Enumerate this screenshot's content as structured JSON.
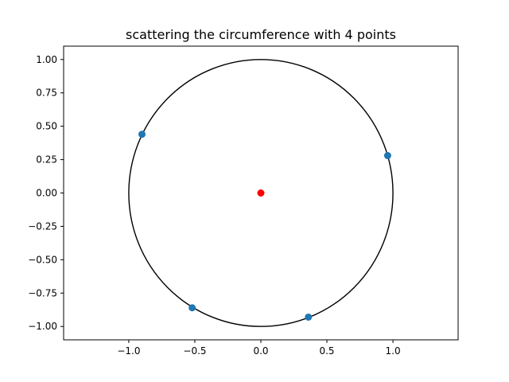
{
  "chart_data": {
    "type": "scatter",
    "title": "scattering the circumference with 4 points",
    "xlabel": "",
    "ylabel": "",
    "xlim": [
      -1.4933,
      1.4933
    ],
    "ylim": [
      -1.1,
      1.1
    ],
    "grid": false,
    "legend": "none",
    "x_ticks": [
      {
        "value": -1.0,
        "label": "−1.0"
      },
      {
        "value": -0.5,
        "label": "−0.5"
      },
      {
        "value": 0.0,
        "label": "0.0"
      },
      {
        "value": 0.5,
        "label": "0.5"
      },
      {
        "value": 1.0,
        "label": "1.0"
      }
    ],
    "y_ticks": [
      {
        "value": -1.0,
        "label": "−1.00"
      },
      {
        "value": -0.75,
        "label": "−0.75"
      },
      {
        "value": -0.5,
        "label": "−0.50"
      },
      {
        "value": -0.25,
        "label": "−0.25"
      },
      {
        "value": 0.0,
        "label": "0.00"
      },
      {
        "value": 0.25,
        "label": "0.25"
      },
      {
        "value": 0.5,
        "label": "0.50"
      },
      {
        "value": 0.75,
        "label": "0.75"
      },
      {
        "value": 1.0,
        "label": "1.00"
      }
    ],
    "circle": {
      "center": [
        0,
        0
      ],
      "radius": 1.0,
      "color": "#000000"
    },
    "center_point": {
      "x": 0.0,
      "y": 0.0,
      "color": "#ff0000"
    },
    "series": [
      {
        "color": "#1f77b4",
        "points": [
          {
            "x": -0.9,
            "y": 0.44
          },
          {
            "x": 0.96,
            "y": 0.28
          },
          {
            "x": -0.52,
            "y": -0.86
          },
          {
            "x": 0.36,
            "y": -0.93
          }
        ]
      }
    ]
  }
}
